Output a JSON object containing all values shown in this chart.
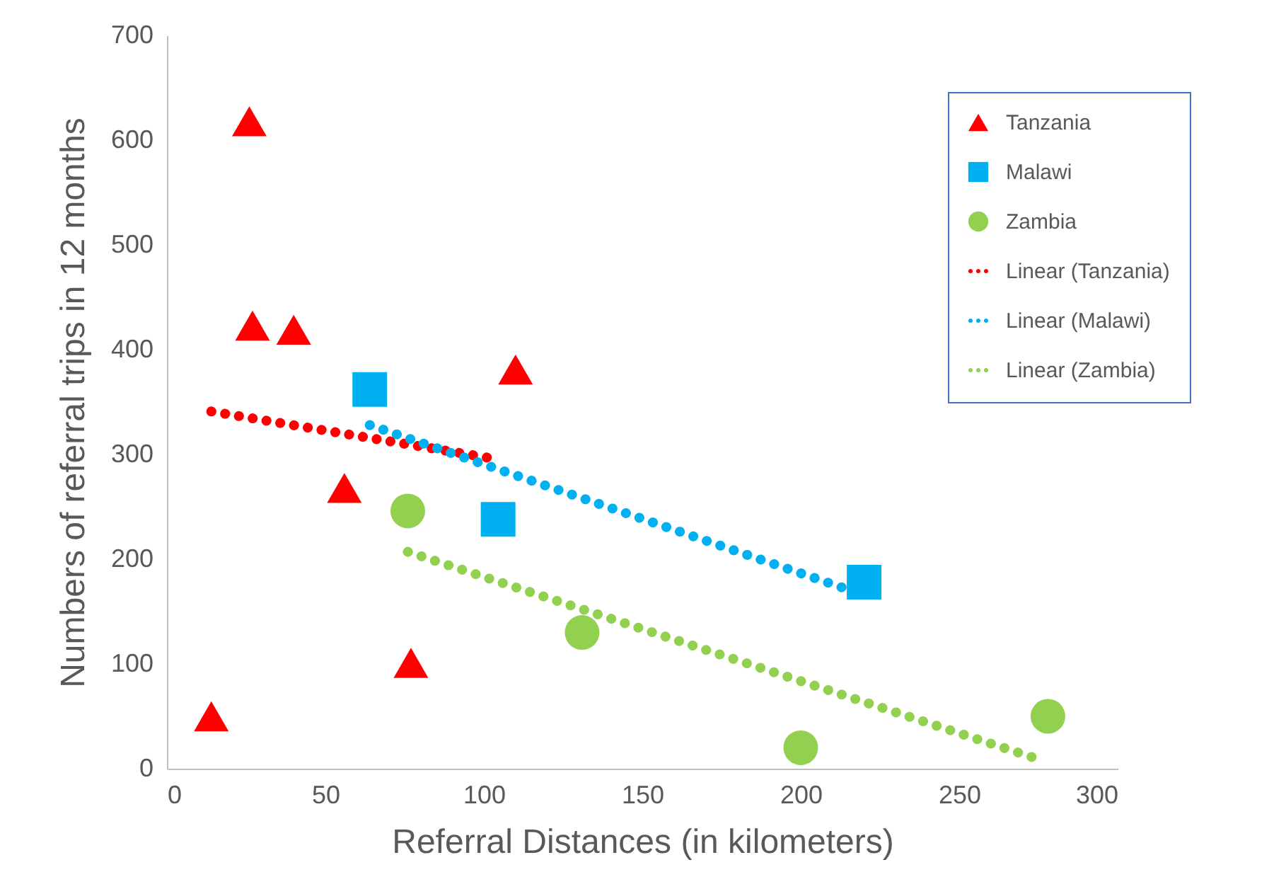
{
  "chart_data": {
    "type": "scatter",
    "xlabel": "Referral Distances (in kilometers)",
    "ylabel": "Numbers of referral trips in 12 months",
    "xlim": [
      0,
      300
    ],
    "xticks": [
      0,
      50,
      100,
      150,
      200,
      250,
      300
    ],
    "ylim": [
      0,
      700
    ],
    "yticks": [
      0,
      100,
      200,
      300,
      400,
      500,
      600,
      700
    ],
    "grid": false,
    "legend": "top right",
    "series": [
      {
        "name": "Tanzania",
        "type": "scatter",
        "marker": "triangle",
        "color": "#ff0000",
        "x": [
          26,
          27,
          40,
          110,
          56,
          77,
          14
        ],
        "values": [
          618,
          423,
          419,
          381,
          268,
          101,
          50
        ]
      },
      {
        "name": "Malawi",
        "type": "scatter",
        "marker": "square",
        "color": "#00b0f0",
        "x": [
          64,
          104.5,
          220
        ],
        "values": [
          362,
          238,
          178
        ]
      },
      {
        "name": "Zambia",
        "type": "scatter",
        "marker": "circle",
        "color": "#92d050",
        "x": [
          76,
          131,
          200,
          278
        ],
        "values": [
          246,
          130,
          20,
          50
        ]
      },
      {
        "name": "Linear (Tanzania)",
        "type": "line",
        "line_style": "dotted",
        "color": "#ff0000",
        "x": [
          14,
          101
        ],
        "values": [
          341,
          297
        ]
      },
      {
        "name": "Linear (Malawi)",
        "type": "line",
        "line_style": "dotted",
        "color": "#00b0f0",
        "x": [
          64,
          213
        ],
        "values": [
          328,
          173
        ]
      },
      {
        "name": "Linear (Zambia)",
        "type": "line",
        "line_style": "dotted",
        "color": "#92d050",
        "x": [
          76,
          273
        ],
        "values": [
          207,
          11
        ]
      }
    ]
  }
}
